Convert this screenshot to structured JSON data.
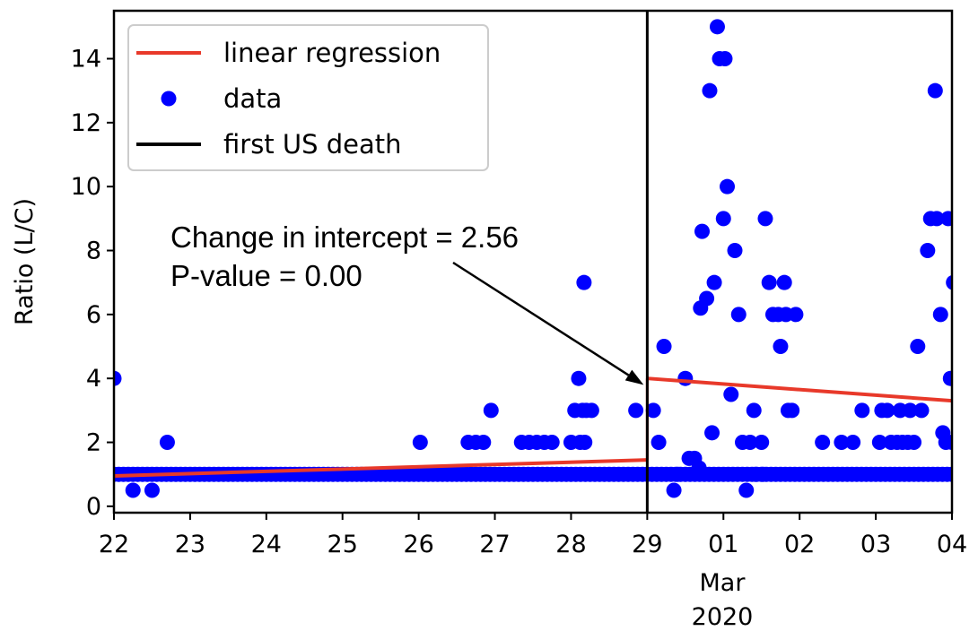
{
  "chart_data": {
    "type": "scatter",
    "title": "",
    "xlabel": "",
    "ylabel": "Ratio (L/C)",
    "x_tick_labels": [
      "22",
      "23",
      "24",
      "25",
      "26",
      "27",
      "28",
      "29",
      "01",
      "02",
      "03",
      "04"
    ],
    "x_month_label": "Mar",
    "x_year_label": "2020",
    "x_range": [
      0,
      11
    ],
    "ylim": [
      -0.2,
      15.5
    ],
    "y_ticks": [
      0,
      2,
      4,
      6,
      8,
      10,
      12,
      14
    ],
    "legend": [
      {
        "label": "linear regression",
        "style": "line",
        "color": "#e8392a"
      },
      {
        "label": "data",
        "style": "marker",
        "color": "#0000ff"
      },
      {
        "label": "first US death",
        "style": "line",
        "color": "#000000"
      }
    ],
    "vertical_line_x": 7,
    "regression_segments": [
      {
        "x": [
          0,
          7
        ],
        "y": [
          0.95,
          1.45
        ]
      },
      {
        "x": [
          7,
          11
        ],
        "y": [
          4.0,
          3.3
        ]
      }
    ],
    "annotation": {
      "line1": "Change in intercept = 2.56",
      "line2": "P-value = 0.00",
      "arrow_to": [
        7,
        3.8
      ]
    },
    "series": [
      {
        "name": "data",
        "color": "#0000ff",
        "baseline_start": 0,
        "baseline_end": 11,
        "baseline_step": 0.0625,
        "baseline_value": 1,
        "points": [
          [
            0.0,
            4
          ],
          [
            0.25,
            0.5
          ],
          [
            0.5,
            0.5
          ],
          [
            0.7,
            2
          ],
          [
            4.02,
            2
          ],
          [
            4.65,
            2
          ],
          [
            4.75,
            2
          ],
          [
            4.85,
            2
          ],
          [
            4.95,
            3
          ],
          [
            5.35,
            2
          ],
          [
            5.45,
            2
          ],
          [
            5.55,
            2
          ],
          [
            5.65,
            2
          ],
          [
            5.75,
            2
          ],
          [
            6.0,
            2
          ],
          [
            6.05,
            3
          ],
          [
            6.12,
            2
          ],
          [
            6.15,
            3
          ],
          [
            6.18,
            2
          ],
          [
            6.1,
            4
          ],
          [
            6.17,
            7
          ],
          [
            6.2,
            3
          ],
          [
            6.27,
            3
          ],
          [
            6.85,
            3
          ],
          [
            7.08,
            3
          ],
          [
            7.15,
            2
          ],
          [
            7.22,
            5
          ],
          [
            7.35,
            0.5
          ],
          [
            7.4,
            1
          ],
          [
            7.5,
            4
          ],
          [
            7.55,
            1.5
          ],
          [
            7.62,
            1.5
          ],
          [
            7.68,
            1.2
          ],
          [
            7.7,
            6.2
          ],
          [
            7.72,
            8.6
          ],
          [
            7.78,
            6.5
          ],
          [
            7.82,
            13
          ],
          [
            7.85,
            2.3
          ],
          [
            7.88,
            7
          ],
          [
            7.92,
            15
          ],
          [
            7.95,
            14
          ],
          [
            8.0,
            9
          ],
          [
            8.02,
            14
          ],
          [
            8.05,
            10
          ],
          [
            8.1,
            3.5
          ],
          [
            8.15,
            8
          ],
          [
            8.2,
            6
          ],
          [
            8.25,
            2
          ],
          [
            8.3,
            0.5
          ],
          [
            8.35,
            2
          ],
          [
            8.4,
            3
          ],
          [
            8.42,
            1
          ],
          [
            8.5,
            2
          ],
          [
            8.52,
            1
          ],
          [
            8.55,
            9
          ],
          [
            8.6,
            7
          ],
          [
            8.65,
            6
          ],
          [
            8.72,
            6
          ],
          [
            8.75,
            5
          ],
          [
            8.8,
            7
          ],
          [
            8.82,
            6
          ],
          [
            8.85,
            3
          ],
          [
            8.9,
            3
          ],
          [
            8.95,
            6
          ],
          [
            9.3,
            2
          ],
          [
            9.55,
            2
          ],
          [
            9.7,
            2
          ],
          [
            9.82,
            3
          ],
          [
            10.05,
            2
          ],
          [
            10.08,
            3
          ],
          [
            10.15,
            3
          ],
          [
            10.2,
            2
          ],
          [
            10.28,
            2
          ],
          [
            10.32,
            3
          ],
          [
            10.35,
            2
          ],
          [
            10.42,
            2
          ],
          [
            10.45,
            3
          ],
          [
            10.5,
            2
          ],
          [
            10.55,
            5
          ],
          [
            10.6,
            3
          ],
          [
            10.68,
            8
          ],
          [
            10.72,
            9
          ],
          [
            10.78,
            13
          ],
          [
            10.8,
            9
          ],
          [
            10.85,
            6
          ],
          [
            10.88,
            2.3
          ],
          [
            10.92,
            2
          ],
          [
            10.95,
            9
          ],
          [
            10.98,
            4
          ],
          [
            11.0,
            2
          ],
          [
            11.02,
            7
          ]
        ]
      }
    ]
  }
}
